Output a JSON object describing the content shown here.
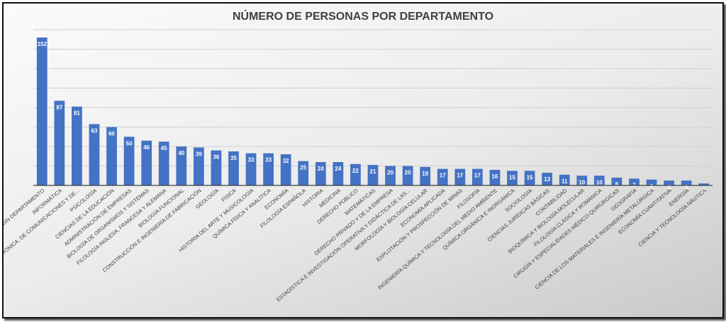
{
  "chart_data": {
    "type": "bar",
    "title": "NÚMERO DE PERSONAS POR DEPARTAMENTO",
    "xlabel": "",
    "ylabel": "",
    "ylim": [
      0,
      160
    ],
    "grid": true,
    "bar_color": "#4472C4",
    "categories": [
      "SIN DEPARTAMENTO",
      "INFORMÁTICA",
      ", ELECTRÓNICA, DE COMUNICACIONES Y DE...",
      "PSICOLOGÍA",
      "CIENCIAS DE LA EDUCACIÓN",
      "ADMINISTRACIÓN DE EMPRESAS",
      "BIOLOGÍA DE ORGANISMOS Y SISTEMAS",
      "FILOLOGÍA INGLESA, FRANCESA Y ALEMANA",
      "BIOLOGÍA FUNCIONAL",
      "CONSTRUCCIÓN E INGENIERÍA DE FABRICACIÓN",
      "GEOLOGÍA",
      "FÍSICA",
      "HISTORIA DEL ARTE Y MUSICOLOGÍA",
      "QUÍMICA FÍSICA Y ANALÍTICA",
      "ECONOMÍA",
      "FILOLOGÍA ESPAÑOLA",
      "HISTORIA",
      "MEDICINA",
      "DERECHO PÚBLICO",
      "MATEMÁTICAS",
      "DERECHO PRIVADO Y DE LA EMPRESA",
      "ESTADÍSTICA E INVESTIGACIÓN OPERATIVA Y DIDÁCTICA DE LAS...",
      "MORFOLOGÍA Y BIOLOGÍA CELULAR",
      "ECONOMÍA APLICADA",
      "EXPLOTACIÓN Y PROSPECCIÓN DE MINAS",
      "FILOSOFÍA",
      "INGENIERÍA QUÍMICA Y TECNOLOGÍA DEL MEDIO AMBIENTE",
      "QUÍMICA ORGÁNICA E INORGÁNICA",
      "SOCIOLOGÍA",
      "CIENCIAS JURÍDICAS BÁSICAS",
      "CONTABILIDAD",
      "BIOQUÍMICA Y BIOLOGÍA MOLECULAR",
      "FILOLOGÍA CLÁSICA Y ROMÁNICA",
      "CIRUGÍA Y ESPECIALIDADES MÉDICO-QUIRÚRGICAS",
      "GEOGRAFÍA",
      "CIENCIA DE LOS MATERIALES E INGENIERÍA METALÚRGICA",
      "ECONOMÍA CUANTITATIVA",
      "ENERGÍA",
      "CIENCIA Y TECNOLOGÍA NÁUTICA"
    ],
    "values": [
      152,
      87,
      81,
      63,
      60,
      50,
      46,
      45,
      40,
      39,
      36,
      35,
      33,
      33,
      32,
      25,
      24,
      24,
      22,
      21,
      20,
      20,
      19,
      17,
      17,
      17,
      16,
      15,
      15,
      13,
      11,
      10,
      10,
      8,
      7,
      6,
      5,
      5,
      2
    ]
  }
}
